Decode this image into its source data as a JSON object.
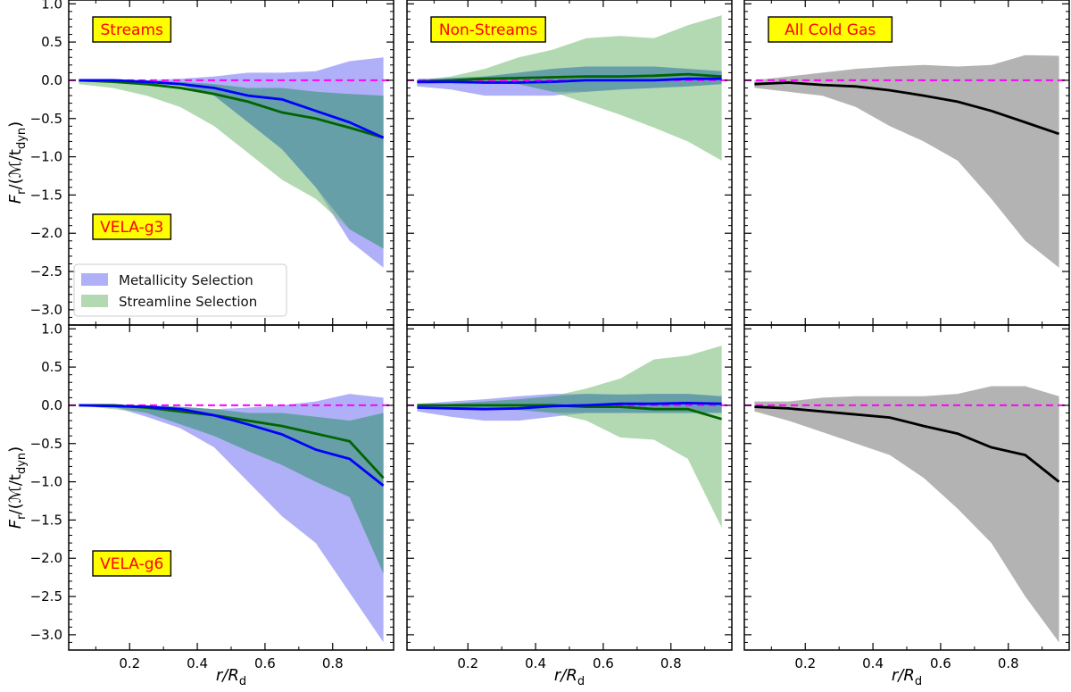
{
  "xlabel_main": "r/R",
  "xlabel_sub": "d",
  "ylabel_main": "F",
  "ylabel_sub": "r",
  "ylabel_tail": "/(ℳ/t",
  "ylabel_tail_sub": "dyn",
  "ylabel_close": ")",
  "colors": {
    "metallicity_fill": "#7b7bf5",
    "streamline_fill": "#7fc07f",
    "overlap_fill": "#5f9aa8",
    "all_fill": "#a0a0a0",
    "blue_line": "#0000ff",
    "green_line": "#006400",
    "black_line": "#000000",
    "zero_line": "#ff00ff",
    "tag_bg": "#ffff00",
    "tag_text": "#ff0000"
  },
  "legend": [
    "Metallicity Selection",
    "Streamline Selection"
  ],
  "chart_data": {
    "type": "area",
    "xlim": [
      0.02,
      0.98
    ],
    "ylim": [
      -3.2,
      1.05
    ],
    "xticks": [
      0.2,
      0.4,
      0.6,
      0.8
    ],
    "yticks": [
      1.0,
      0.5,
      0.0,
      -0.5,
      -1.0,
      -1.5,
      -2.0,
      -2.5,
      -3.0
    ],
    "x": [
      0.05,
      0.15,
      0.25,
      0.35,
      0.45,
      0.55,
      0.65,
      0.75,
      0.85,
      0.95
    ],
    "panels": [
      {
        "row": 0,
        "col": 0,
        "tag": "Streams",
        "galaxy": "VELA-g3",
        "legend": true,
        "series": [
          {
            "name": "Metallicity Selection",
            "kind": "band",
            "low": [
              -0.02,
              -0.02,
              -0.03,
              -0.06,
              -0.2,
              -0.55,
              -0.9,
              -1.4,
              -2.1,
              -2.45
            ],
            "high": [
              0.0,
              0.0,
              0.0,
              0.02,
              0.05,
              0.1,
              0.1,
              0.12,
              0.25,
              0.3
            ],
            "median": [
              0.0,
              0.0,
              -0.02,
              -0.05,
              -0.1,
              -0.2,
              -0.25,
              -0.4,
              -0.55,
              -0.75
            ]
          },
          {
            "name": "Streamline Selection",
            "kind": "band",
            "low": [
              -0.05,
              -0.1,
              -0.2,
              -0.35,
              -0.6,
              -0.95,
              -1.3,
              -1.55,
              -1.95,
              -2.2
            ],
            "high": [
              0.0,
              0.0,
              0.0,
              -0.02,
              -0.05,
              -0.1,
              -0.1,
              -0.15,
              -0.18,
              -0.2
            ],
            "median": [
              0.0,
              -0.02,
              -0.05,
              -0.1,
              -0.18,
              -0.28,
              -0.42,
              -0.5,
              -0.62,
              -0.75
            ]
          }
        ]
      },
      {
        "row": 0,
        "col": 1,
        "tag": "Non-Streams",
        "galaxy": "",
        "legend": false,
        "series": [
          {
            "name": "Metallicity Selection",
            "kind": "band",
            "low": [
              -0.08,
              -0.12,
              -0.2,
              -0.2,
              -0.2,
              -0.15,
              -0.12,
              -0.1,
              -0.08,
              -0.05
            ],
            "high": [
              0.02,
              0.03,
              0.05,
              0.1,
              0.15,
              0.18,
              0.18,
              0.18,
              0.15,
              0.12
            ],
            "median": [
              -0.02,
              -0.02,
              -0.03,
              -0.03,
              -0.02,
              0.0,
              0.0,
              0.0,
              0.02,
              0.02
            ]
          },
          {
            "name": "Streamline Selection",
            "kind": "band",
            "low": [
              -0.05,
              -0.04,
              -0.03,
              -0.05,
              -0.15,
              -0.3,
              -0.45,
              -0.62,
              -0.8,
              -1.05
            ],
            "high": [
              0.0,
              0.05,
              0.15,
              0.3,
              0.4,
              0.55,
              0.58,
              0.55,
              0.72,
              0.85
            ],
            "median": [
              -0.02,
              0.0,
              0.02,
              0.03,
              0.04,
              0.05,
              0.05,
              0.06,
              0.08,
              0.05
            ]
          }
        ]
      },
      {
        "row": 0,
        "col": 2,
        "tag": "All Cold Gas",
        "galaxy": "",
        "legend": false,
        "series": [
          {
            "name": "",
            "kind": "gray",
            "low": [
              -0.1,
              -0.15,
              -0.2,
              -0.35,
              -0.6,
              -0.8,
              -1.05,
              -1.55,
              -2.1,
              -2.45
            ],
            "high": [
              0.0,
              0.05,
              0.1,
              0.15,
              0.18,
              0.2,
              0.18,
              0.2,
              0.33,
              0.32
            ],
            "median": [
              -0.05,
              -0.03,
              -0.06,
              -0.08,
              -0.13,
              -0.2,
              -0.28,
              -0.4,
              -0.55,
              -0.7
            ]
          }
        ]
      },
      {
        "row": 1,
        "col": 0,
        "tag": "",
        "galaxy": "VELA-g6",
        "legend": false,
        "series": [
          {
            "name": "Metallicity Selection",
            "kind": "band",
            "low": [
              0.0,
              -0.02,
              -0.15,
              -0.3,
              -0.55,
              -1.0,
              -1.45,
              -1.8,
              -2.45,
              -3.1
            ],
            "high": [
              0.0,
              0.0,
              0.0,
              -0.02,
              -0.05,
              -0.03,
              0.0,
              0.05,
              0.15,
              0.1
            ],
            "median": [
              0.0,
              -0.01,
              -0.02,
              -0.05,
              -0.13,
              -0.25,
              -0.38,
              -0.58,
              -0.7,
              -1.05
            ]
          },
          {
            "name": "Streamline Selection",
            "kind": "band",
            "low": [
              0.0,
              -0.05,
              -0.1,
              -0.25,
              -0.4,
              -0.6,
              -0.78,
              -1.0,
              -1.2,
              -2.2
            ],
            "high": [
              0.0,
              0.0,
              0.0,
              -0.02,
              -0.05,
              -0.1,
              -0.1,
              -0.15,
              -0.2,
              -0.1
            ],
            "median": [
              0.0,
              0.0,
              -0.03,
              -0.08,
              -0.13,
              -0.2,
              -0.27,
              -0.37,
              -0.47,
              -0.95
            ]
          }
        ]
      },
      {
        "row": 1,
        "col": 1,
        "tag": "",
        "galaxy": "",
        "legend": false,
        "series": [
          {
            "name": "Metallicity Selection",
            "kind": "band",
            "low": [
              -0.08,
              -0.15,
              -0.2,
              -0.2,
              -0.15,
              -0.1,
              -0.1,
              -0.1,
              -0.1,
              -0.1
            ],
            "high": [
              0.02,
              0.05,
              0.08,
              0.12,
              0.15,
              0.15,
              0.14,
              0.15,
              0.15,
              0.12
            ],
            "median": [
              -0.03,
              -0.04,
              -0.05,
              -0.04,
              -0.01,
              0.0,
              0.02,
              0.02,
              0.03,
              0.02
            ]
          },
          {
            "name": "Streamline Selection",
            "kind": "band",
            "low": [
              -0.04,
              -0.04,
              -0.05,
              -0.06,
              -0.1,
              -0.2,
              -0.42,
              -0.45,
              -0.7,
              -1.6
            ],
            "high": [
              0.0,
              0.02,
              0.05,
              0.08,
              0.12,
              0.22,
              0.35,
              0.6,
              0.65,
              0.78
            ],
            "median": [
              0.0,
              0.0,
              0.0,
              0.0,
              0.0,
              -0.02,
              -0.02,
              -0.05,
              -0.05,
              -0.18
            ]
          }
        ]
      },
      {
        "row": 1,
        "col": 2,
        "tag": "",
        "galaxy": "",
        "legend": false,
        "series": [
          {
            "name": "",
            "kind": "gray",
            "low": [
              -0.08,
              -0.2,
              -0.35,
              -0.5,
              -0.65,
              -0.95,
              -1.35,
              -1.8,
              -2.5,
              -3.1
            ],
            "high": [
              0.05,
              0.05,
              0.1,
              0.12,
              0.12,
              0.12,
              0.15,
              0.25,
              0.25,
              0.12
            ],
            "median": [
              -0.02,
              -0.04,
              -0.08,
              -0.12,
              -0.16,
              -0.27,
              -0.37,
              -0.55,
              -0.65,
              -1.0
            ]
          }
        ]
      }
    ]
  }
}
